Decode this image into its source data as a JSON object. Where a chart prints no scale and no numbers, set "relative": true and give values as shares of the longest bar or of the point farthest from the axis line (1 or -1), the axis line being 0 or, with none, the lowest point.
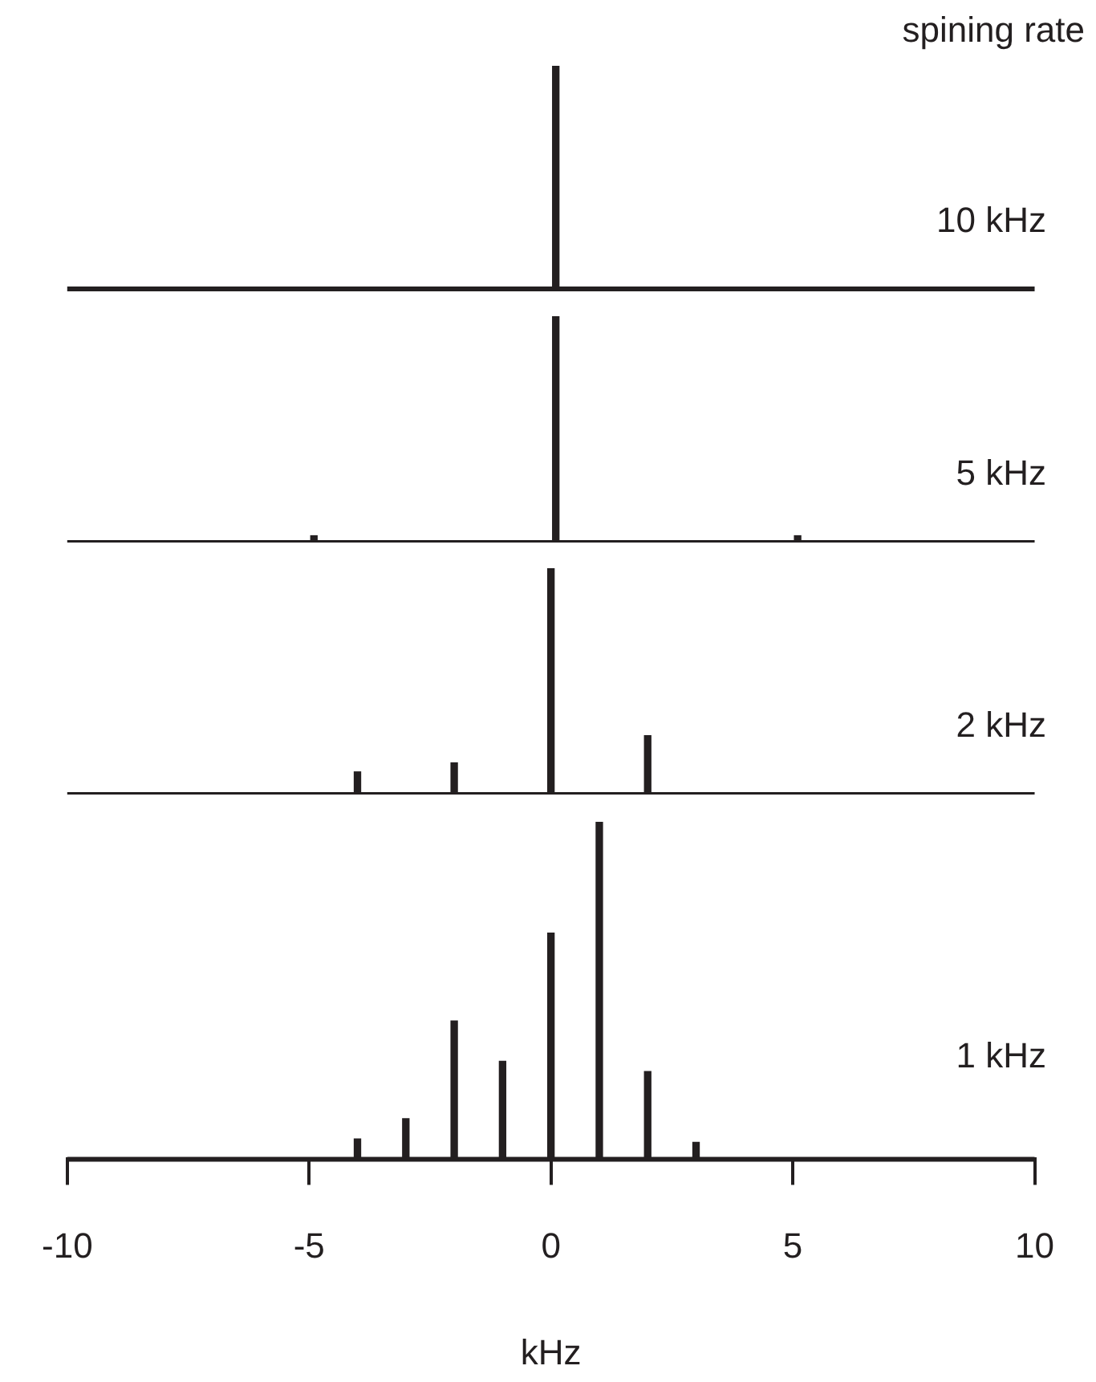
{
  "chart_data": [
    {
      "type": "bar",
      "relative": true,
      "tick_labels": false,
      "xlim": [
        -10,
        10
      ],
      "color": "#231f20",
      "annotations": [
        "spining rate",
        "10 kHz"
      ],
      "x": [
        0.1
      ],
      "values": [
        1
      ]
    },
    {
      "type": "bar",
      "relative": true,
      "tick_labels": false,
      "xlim": [
        -10,
        10
      ],
      "color": "#231f20",
      "annotations": [
        "5 kHz"
      ],
      "x": [
        -4.9,
        0.1,
        5.1
      ],
      "values": [
        0.03,
        1,
        0.03
      ]
    },
    {
      "type": "bar",
      "relative": true,
      "tick_labels": false,
      "xlim": [
        -10,
        10
      ],
      "color": "#231f20",
      "annotations": [
        "2 kHz"
      ],
      "x": [
        -4,
        -2,
        0,
        2
      ],
      "values": [
        0.1,
        0.14,
        1,
        0.26
      ]
    },
    {
      "type": "bar",
      "relative": true,
      "tick_labels": "x",
      "xlim": [
        -10,
        10
      ],
      "xticks": [
        -10,
        -5,
        0,
        5,
        10
      ],
      "xlabel": "kHz",
      "color": "#231f20",
      "annotations": [
        "1 kHz"
      ],
      "x": [
        -4,
        -3,
        -2,
        -1,
        0,
        1,
        2,
        3
      ],
      "values": [
        0.06,
        0.12,
        0.41,
        0.29,
        0.67,
        1,
        0.26,
        0.05
      ]
    }
  ]
}
